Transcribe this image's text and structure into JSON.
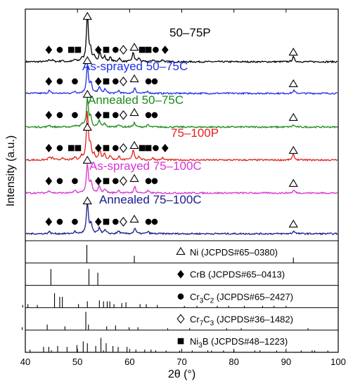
{
  "chart_data": {
    "type": "line",
    "title": "",
    "xlabel": "2θ (°)",
    "ylabel": "Intensity (a.u.)",
    "xlim": [
      40,
      100
    ],
    "xticks": [
      40,
      50,
      60,
      70,
      80,
      90,
      100
    ],
    "grid": false,
    "series": [
      {
        "name": "50–75P",
        "color": "#000000",
        "peaks": [
          [
            44.6,
            3
          ],
          [
            45.2,
            2
          ],
          [
            47.0,
            2
          ],
          [
            49.5,
            3
          ],
          [
            50.8,
            4
          ],
          [
            51.9,
            68
          ],
          [
            52.5,
            16
          ],
          [
            53.2,
            6
          ],
          [
            54.3,
            14
          ],
          [
            55.2,
            7
          ],
          [
            56.3,
            6
          ],
          [
            58.0,
            5
          ],
          [
            60.7,
            13
          ],
          [
            61.8,
            5
          ],
          [
            64.5,
            3
          ],
          [
            66.3,
            3
          ],
          [
            91.4,
            7
          ]
        ]
      },
      {
        "name": "As-sprayed 50–75C",
        "color": "#1f2ee6",
        "peaks": [
          [
            44.6,
            4
          ],
          [
            49.5,
            3
          ],
          [
            51.9,
            40
          ],
          [
            52.6,
            14
          ],
          [
            54.2,
            10
          ],
          [
            55.3,
            6
          ],
          [
            57.9,
            4
          ],
          [
            61.0,
            8
          ],
          [
            63.5,
            3
          ],
          [
            91.5,
            4
          ]
        ]
      },
      {
        "name": "Annealed 50–75C",
        "color": "#1a8a1a",
        "peaks": [
          [
            44.6,
            3
          ],
          [
            49.5,
            3
          ],
          [
            50.9,
            4
          ],
          [
            51.9,
            40
          ],
          [
            52.5,
            14
          ],
          [
            54.2,
            9
          ],
          [
            55.2,
            5
          ],
          [
            57.9,
            4
          ],
          [
            60.9,
            6
          ],
          [
            63.5,
            3
          ],
          [
            91.4,
            3
          ]
        ]
      },
      {
        "name": "75–100P",
        "color": "#e0241b",
        "peaks": [
          [
            44.6,
            4
          ],
          [
            45.2,
            3
          ],
          [
            47.0,
            3
          ],
          [
            49.5,
            4
          ],
          [
            50.8,
            5
          ],
          [
            51.9,
            70
          ],
          [
            52.5,
            18
          ],
          [
            53.2,
            7
          ],
          [
            54.3,
            15
          ],
          [
            55.2,
            8
          ],
          [
            56.3,
            6
          ],
          [
            58.0,
            5
          ],
          [
            60.7,
            15
          ],
          [
            61.8,
            5
          ],
          [
            64.5,
            3
          ],
          [
            66.3,
            3
          ],
          [
            91.4,
            8
          ]
        ]
      },
      {
        "name": "As-sprayed 75–100C",
        "color": "#d633d6",
        "peaks": [
          [
            44.6,
            4
          ],
          [
            49.5,
            3
          ],
          [
            51.9,
            42
          ],
          [
            52.6,
            15
          ],
          [
            54.2,
            10
          ],
          [
            55.3,
            6
          ],
          [
            57.9,
            4
          ],
          [
            61.0,
            9
          ],
          [
            63.5,
            3
          ],
          [
            91.5,
            4
          ]
        ]
      },
      {
        "name": "Annealed 75–100C",
        "color": "#1a1a8c",
        "peaks": [
          [
            44.6,
            3
          ],
          [
            49.5,
            3
          ],
          [
            51.9,
            44
          ],
          [
            52.6,
            14
          ],
          [
            54.2,
            9
          ],
          [
            55.3,
            5
          ],
          [
            57.9,
            4
          ],
          [
            61.0,
            8
          ],
          [
            63.5,
            3
          ],
          [
            91.5,
            4
          ]
        ]
      }
    ],
    "series_markers": [
      [
        {
          "type": "diamond",
          "x": 44.5
        },
        {
          "type": "circle",
          "x": 46.6
        },
        {
          "type": "square",
          "x": 48.8
        },
        {
          "type": "square",
          "x": 50.1
        },
        {
          "type": "triangle",
          "x": 51.9
        },
        {
          "type": "diamond",
          "x": 54.0
        },
        {
          "type": "square",
          "x": 55.5
        },
        {
          "type": "circle",
          "x": 57.3
        },
        {
          "type": "rhombus",
          "x": 58.8
        },
        {
          "type": "triangle",
          "x": 60.9
        },
        {
          "type": "square",
          "x": 62.4
        },
        {
          "type": "square",
          "x": 63.6
        },
        {
          "type": "circle",
          "x": 65.0
        },
        {
          "type": "diamond",
          "x": 66.8
        },
        {
          "type": "triangle",
          "x": 91.4
        }
      ],
      [
        {
          "type": "diamond",
          "x": 44.5
        },
        {
          "type": "circle",
          "x": 46.6
        },
        {
          "type": "circle",
          "x": 49.5
        },
        {
          "type": "triangle",
          "x": 51.9
        },
        {
          "type": "diamond",
          "x": 54.0
        },
        {
          "type": "square",
          "x": 55.5
        },
        {
          "type": "circle",
          "x": 57.3
        },
        {
          "type": "rhombus",
          "x": 58.8
        },
        {
          "type": "triangle",
          "x": 60.9
        },
        {
          "type": "circle",
          "x": 63.6
        },
        {
          "type": "circle",
          "x": 64.8
        },
        {
          "type": "triangle",
          "x": 91.4
        }
      ],
      [
        {
          "type": "diamond",
          "x": 44.5
        },
        {
          "type": "circle",
          "x": 46.6
        },
        {
          "type": "circle",
          "x": 49.5
        },
        {
          "type": "triangle",
          "x": 51.9
        },
        {
          "type": "diamond",
          "x": 54.0
        },
        {
          "type": "square",
          "x": 55.5
        },
        {
          "type": "circle",
          "x": 57.3
        },
        {
          "type": "rhombus",
          "x": 58.8
        },
        {
          "type": "triangle",
          "x": 60.9
        },
        {
          "type": "circle",
          "x": 63.6
        },
        {
          "type": "circle",
          "x": 64.8
        },
        {
          "type": "triangle",
          "x": 91.4
        }
      ],
      [
        {
          "type": "diamond",
          "x": 44.5
        },
        {
          "type": "circle",
          "x": 46.6
        },
        {
          "type": "square",
          "x": 48.8
        },
        {
          "type": "square",
          "x": 50.1
        },
        {
          "type": "triangle",
          "x": 51.9
        },
        {
          "type": "diamond",
          "x": 54.0
        },
        {
          "type": "square",
          "x": 55.5
        },
        {
          "type": "circle",
          "x": 57.3
        },
        {
          "type": "rhombus",
          "x": 58.8
        },
        {
          "type": "triangle",
          "x": 60.9
        },
        {
          "type": "square",
          "x": 62.4
        },
        {
          "type": "square",
          "x": 63.6
        },
        {
          "type": "circle",
          "x": 65.0
        },
        {
          "type": "diamond",
          "x": 66.8
        },
        {
          "type": "triangle",
          "x": 91.4
        }
      ],
      [
        {
          "type": "diamond",
          "x": 44.5
        },
        {
          "type": "circle",
          "x": 46.6
        },
        {
          "type": "circle",
          "x": 49.5
        },
        {
          "type": "triangle",
          "x": 51.9
        },
        {
          "type": "diamond",
          "x": 54.0
        },
        {
          "type": "square",
          "x": 55.5
        },
        {
          "type": "circle",
          "x": 57.3
        },
        {
          "type": "rhombus",
          "x": 58.8
        },
        {
          "type": "triangle",
          "x": 60.9
        },
        {
          "type": "circle",
          "x": 63.6
        },
        {
          "type": "circle",
          "x": 64.8
        },
        {
          "type": "triangle",
          "x": 91.4
        }
      ],
      [
        {
          "type": "diamond",
          "x": 44.5
        },
        {
          "type": "circle",
          "x": 46.6
        },
        {
          "type": "circle",
          "x": 49.5
        },
        {
          "type": "triangle",
          "x": 51.9
        },
        {
          "type": "diamond",
          "x": 54.0
        },
        {
          "type": "square",
          "x": 55.5
        },
        {
          "type": "circle",
          "x": 57.3
        },
        {
          "type": "rhombus",
          "x": 58.8
        },
        {
          "type": "triangle",
          "x": 60.9
        },
        {
          "type": "circle",
          "x": 63.6
        },
        {
          "type": "circle",
          "x": 64.8
        },
        {
          "type": "triangle",
          "x": 91.4
        }
      ]
    ],
    "references": [
      {
        "symbol": "triangle",
        "phase": "Ni",
        "sub": "",
        "jcpds": " (JCPDS#65–0380)",
        "lines": [
          [
            51.8,
            1.0
          ],
          [
            60.9,
            0.4
          ],
          [
            91.4,
            0.3
          ]
        ]
      },
      {
        "symbol": "diamond",
        "phase": "CrB",
        "sub": "",
        "jcpds": " (JCPDS#65–0413)",
        "lines": [
          [
            44.9,
            0.9
          ],
          [
            52.2,
            0.9
          ],
          [
            53.9,
            0.7
          ]
        ]
      },
      {
        "symbol": "circle",
        "phase": "Cr",
        "sub": [
          "3",
          "C",
          "2"
        ],
        "jcpds": " (JCPDS#65–2427)",
        "lines": [
          [
            39.5,
            0.15
          ],
          [
            40.5,
            0.2
          ],
          [
            42.3,
            0.15
          ],
          [
            45.6,
            0.8
          ],
          [
            46.6,
            0.6
          ],
          [
            47.1,
            0.6
          ],
          [
            50.2,
            0.2
          ],
          [
            51.9,
            0.35
          ],
          [
            54.2,
            0.4
          ],
          [
            55.0,
            0.35
          ],
          [
            55.7,
            0.35
          ],
          [
            56.2,
            0.35
          ],
          [
            57.0,
            0.2
          ],
          [
            58.5,
            0.25
          ],
          [
            59.3,
            0.3
          ],
          [
            62.0,
            0.2
          ],
          [
            63.2,
            0.2
          ],
          [
            65.3,
            0.15
          ],
          [
            70.5,
            0.1
          ],
          [
            72.9,
            0.1
          ],
          [
            76.8,
            0.1
          ],
          [
            79.0,
            0.1
          ],
          [
            82.0,
            0.1
          ],
          [
            85.5,
            0.1
          ],
          [
            87.7,
            0.1
          ],
          [
            90.0,
            0.1
          ]
        ]
      },
      {
        "symbol": "rhombus",
        "phase": "Cr",
        "sub": [
          "7",
          "C",
          "3"
        ],
        "jcpds": " (JCPDS#36–1482)",
        "lines": [
          [
            39.4,
            0.15
          ],
          [
            44.2,
            0.3
          ],
          [
            47.6,
            0.2
          ],
          [
            51.6,
            1.0
          ],
          [
            52.1,
            0.3
          ],
          [
            55.6,
            0.2
          ],
          [
            57.3,
            0.25
          ],
          [
            59.9,
            0.15
          ],
          [
            61.6,
            0.15
          ],
          [
            67.3,
            0.1
          ],
          [
            71.5,
            0.1
          ],
          [
            78.6,
            0.1
          ],
          [
            81.4,
            0.1
          ],
          [
            94.2,
            0.1
          ]
        ]
      },
      {
        "symbol": "square",
        "phase": "Ni",
        "sub": [
          "3",
          "B",
          ""
        ],
        "jcpds": " (JCPDS#48–1223)",
        "lines": [
          [
            40.9,
            0.15
          ],
          [
            43.5,
            0.3
          ],
          [
            44.5,
            0.3
          ],
          [
            46.2,
            0.35
          ],
          [
            48.0,
            0.3
          ],
          [
            49.9,
            0.4
          ],
          [
            51.1,
            0.6
          ],
          [
            51.9,
            0.5
          ],
          [
            53.5,
            0.35
          ],
          [
            54.5,
            0.8
          ],
          [
            55.5,
            0.5
          ],
          [
            56.8,
            0.35
          ],
          [
            57.8,
            0.3
          ],
          [
            59.5,
            0.3
          ],
          [
            61.2,
            0.15
          ],
          [
            62.9,
            0.15
          ],
          [
            64.1,
            0.15
          ],
          [
            67.0,
            0.1
          ],
          [
            69.6,
            0.1
          ],
          [
            72.0,
            0.1
          ],
          [
            75.7,
            0.1
          ],
          [
            78.0,
            0.1
          ],
          [
            80.0,
            0.1
          ],
          [
            84.0,
            0.1
          ],
          [
            88.2,
            0.1
          ],
          [
            92.9,
            0.1
          ],
          [
            95.5,
            0.1
          ],
          [
            98.0,
            0.1
          ]
        ]
      }
    ]
  }
}
